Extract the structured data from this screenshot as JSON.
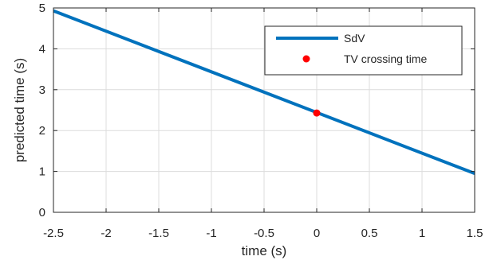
{
  "chart_data": {
    "type": "line",
    "title": "",
    "xlabel": "time (s)",
    "ylabel": "predicted time (s)",
    "xlim": [
      -2.5,
      1.5
    ],
    "ylim": [
      0,
      5
    ],
    "xticks": [
      -2.5,
      -2,
      -1.5,
      -1,
      -0.5,
      0,
      0.5,
      1,
      1.5
    ],
    "xtick_labels": [
      "-2.5",
      "-2",
      "-1.5",
      "-1",
      "-0.5",
      "0",
      "0.5",
      "1",
      "1.5"
    ],
    "yticks": [
      0,
      1,
      2,
      3,
      4,
      5
    ],
    "ytick_labels": [
      "0",
      "1",
      "2",
      "3",
      "4",
      "5"
    ],
    "grid": true,
    "legend_position": "top-right",
    "series": [
      {
        "name": "SdV",
        "kind": "line",
        "color": "#0072BD",
        "x": [
          -2.5,
          1.5
        ],
        "y": [
          4.93,
          0.95
        ]
      },
      {
        "name": "TV crossing time",
        "kind": "marker",
        "color": "#FF0000",
        "x": [
          0
        ],
        "y": [
          2.43
        ]
      }
    ]
  }
}
